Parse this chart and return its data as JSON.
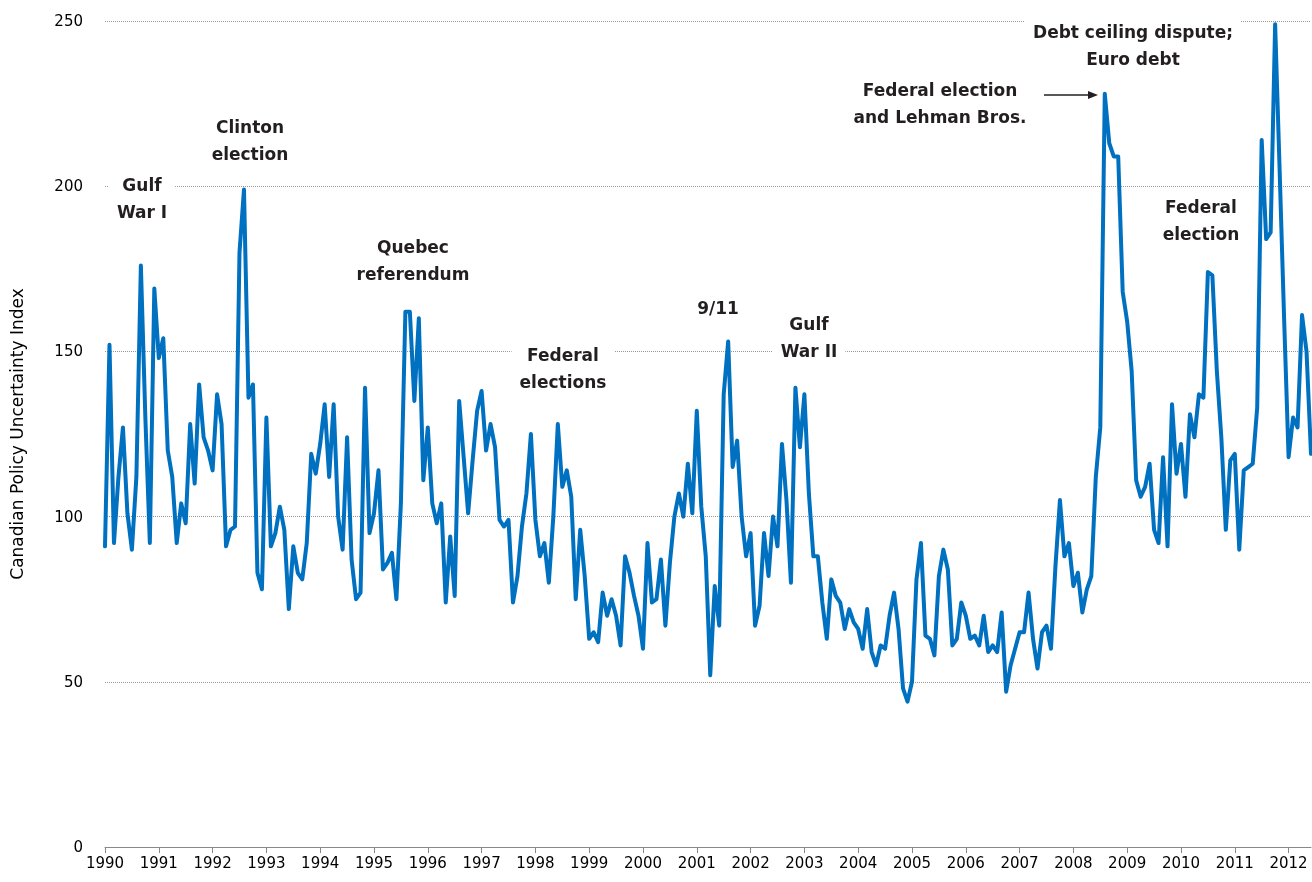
{
  "chart_data": {
    "type": "line",
    "ylabel": "Canadian Policy Uncertainty Index",
    "x": [
      "1990-01",
      "1990-02",
      "1990-03",
      "1990-04",
      "1990-05",
      "1990-06",
      "1990-07",
      "1990-08",
      "1990-09",
      "1990-10",
      "1990-11",
      "1990-12",
      "1991-01",
      "1991-02",
      "1991-03",
      "1991-04",
      "1991-05",
      "1991-06",
      "1991-07",
      "1991-08",
      "1991-09",
      "1991-10",
      "1991-11",
      "1991-12",
      "1992-01",
      "1992-02",
      "1992-03",
      "1992-04",
      "1992-05",
      "1992-06",
      "1992-07",
      "1992-08",
      "1992-09",
      "1992-10",
      "1992-11",
      "1992-12",
      "1993-01",
      "1993-02",
      "1993-03",
      "1993-04",
      "1993-05",
      "1993-06",
      "1993-07",
      "1993-08",
      "1993-09",
      "1993-10",
      "1993-11",
      "1993-12",
      "1994-01",
      "1994-02",
      "1994-03",
      "1994-04",
      "1994-05",
      "1994-06",
      "1994-07",
      "1994-08",
      "1994-09",
      "1994-10",
      "1994-11",
      "1994-12",
      "1995-01",
      "1995-02",
      "1995-03",
      "1995-04",
      "1995-05",
      "1995-06",
      "1995-07",
      "1995-08",
      "1995-09",
      "1995-10",
      "1995-11",
      "1995-12",
      "1996-01",
      "1996-02",
      "1996-03",
      "1996-04",
      "1996-05",
      "1996-06",
      "1996-07",
      "1996-08",
      "1996-09",
      "1996-10",
      "1996-11",
      "1996-12",
      "1997-01",
      "1997-02",
      "1997-03",
      "1997-04",
      "1997-05",
      "1997-06",
      "1997-07",
      "1997-08",
      "1997-09",
      "1997-10",
      "1997-11",
      "1997-12",
      "1998-01",
      "1998-02",
      "1998-03",
      "1998-04",
      "1998-05",
      "1998-06",
      "1998-07",
      "1998-08",
      "1998-09",
      "1998-10",
      "1998-11",
      "1998-12",
      "1999-01",
      "1999-02",
      "1999-03",
      "1999-04",
      "1999-05",
      "1999-06",
      "1999-07",
      "1999-08",
      "1999-09",
      "1999-10",
      "1999-11",
      "1999-12",
      "2000-01",
      "2000-02",
      "2000-03",
      "2000-04",
      "2000-05",
      "2000-06",
      "2000-07",
      "2000-08",
      "2000-09",
      "2000-10",
      "2000-11",
      "2000-12",
      "2001-01",
      "2001-02",
      "2001-03",
      "2001-04",
      "2001-05",
      "2001-06",
      "2001-07",
      "2001-08",
      "2001-09",
      "2001-10",
      "2001-11",
      "2001-12",
      "2002-01",
      "2002-02",
      "2002-03",
      "2002-04",
      "2002-05",
      "2002-06",
      "2002-07",
      "2002-08",
      "2002-09",
      "2002-10",
      "2002-11",
      "2002-12",
      "2003-01",
      "2003-02",
      "2003-03",
      "2003-04",
      "2003-05",
      "2003-06",
      "2003-07",
      "2003-08",
      "2003-09",
      "2003-10",
      "2003-11",
      "2003-12",
      "2004-01",
      "2004-02",
      "2004-03",
      "2004-04",
      "2004-05",
      "2004-06",
      "2004-07",
      "2004-08",
      "2004-09",
      "2004-10",
      "2004-11",
      "2004-12",
      "2005-01",
      "2005-02",
      "2005-03",
      "2005-04",
      "2005-05",
      "2005-06",
      "2005-07",
      "2005-08",
      "2005-09",
      "2005-10",
      "2005-11",
      "2005-12",
      "2006-01",
      "2006-02",
      "2006-03",
      "2006-04",
      "2006-05",
      "2006-06",
      "2006-07",
      "2006-08",
      "2006-09",
      "2006-10",
      "2006-11",
      "2006-12",
      "2007-01",
      "2007-02",
      "2007-03",
      "2007-04",
      "2007-05",
      "2007-06",
      "2007-07",
      "2007-08",
      "2007-09",
      "2007-10",
      "2007-11",
      "2007-12",
      "2008-01",
      "2008-02",
      "2008-03",
      "2008-04",
      "2008-05",
      "2008-06",
      "2008-07",
      "2008-08",
      "2008-09",
      "2008-10",
      "2008-11",
      "2008-12",
      "2009-01",
      "2009-02",
      "2009-03",
      "2009-04",
      "2009-05",
      "2009-06",
      "2009-07",
      "2009-08",
      "2009-09",
      "2009-10",
      "2009-11",
      "2009-12",
      "2010-01",
      "2010-02",
      "2010-03",
      "2010-04",
      "2010-05",
      "2010-06",
      "2010-07",
      "2010-08",
      "2010-09",
      "2010-10",
      "2010-11",
      "2010-12",
      "2011-01",
      "2011-02",
      "2011-03",
      "2011-04",
      "2011-05",
      "2011-06",
      "2011-07",
      "2011-08",
      "2011-09",
      "2011-10",
      "2011-11",
      "2011-12",
      "2012-01",
      "2012-02",
      "2012-03",
      "2012-04",
      "2012-05",
      "2012-06"
    ],
    "series": [
      {
        "color": "#0070c0",
        "values": [
          91,
          152,
          92,
          112,
          127,
          101,
          90,
          112,
          176,
          130,
          92,
          169,
          148,
          154,
          120,
          112,
          92,
          104,
          98,
          128,
          110,
          140,
          124,
          120,
          114,
          137,
          128,
          91,
          96,
          97,
          180,
          199,
          136,
          140,
          83,
          78,
          130,
          91,
          95,
          103,
          96,
          72,
          91,
          83,
          81,
          92,
          119,
          113,
          122,
          134,
          112,
          134,
          100,
          90,
          124,
          87,
          75,
          77,
          139,
          95,
          101,
          114,
          84,
          86,
          89,
          75,
          104,
          162,
          162,
          135,
          160,
          111,
          127,
          104,
          98,
          104,
          74,
          94,
          76,
          135,
          118,
          101,
          117,
          132,
          138,
          120,
          128,
          121,
          99,
          97,
          99,
          74,
          82,
          97,
          107,
          125,
          99,
          88,
          92,
          80,
          100,
          128,
          109,
          114,
          106,
          75,
          96,
          82,
          63,
          65,
          62,
          77,
          70,
          75,
          70,
          61,
          88,
          83,
          76,
          70,
          60,
          92,
          74,
          75,
          87,
          67,
          86,
          100,
          107,
          100,
          116,
          101,
          132,
          103,
          88,
          52,
          79,
          67,
          137,
          153,
          115,
          123,
          100,
          88,
          95,
          67,
          73,
          95,
          82,
          100,
          91,
          122,
          105,
          80,
          139,
          121,
          137,
          107,
          88,
          88,
          74,
          63,
          81,
          76,
          74,
          66,
          72,
          68,
          66,
          60,
          72,
          59,
          55,
          61,
          60,
          70,
          77,
          66,
          48,
          44,
          50,
          81,
          92,
          64,
          63,
          58,
          82,
          90,
          84,
          61,
          63,
          74,
          70,
          63,
          64,
          61,
          70,
          59,
          61,
          59,
          71,
          47,
          55,
          60,
          65,
          65,
          77,
          63,
          54,
          65,
          67,
          60,
          85,
          105,
          88,
          92,
          79,
          83,
          71,
          78,
          82,
          112,
          127,
          228,
          213,
          209,
          209,
          168,
          159,
          144,
          111,
          106,
          109,
          116,
          96,
          92,
          118,
          91,
          134,
          113,
          122,
          106,
          131,
          124,
          137,
          136,
          174,
          173,
          144,
          124,
          96,
          117,
          119,
          90,
          114,
          115,
          116,
          133,
          214,
          184,
          186,
          249,
          205,
          160,
          118,
          130,
          127,
          161,
          150,
          119
        ]
      }
    ],
    "xlim": [
      "1990-01",
      "2012-06"
    ],
    "xticks": [
      "1990",
      "1991",
      "1992",
      "1993",
      "1994",
      "1995",
      "1996",
      "1997",
      "1998",
      "1999",
      "2000",
      "2001",
      "2002",
      "2003",
      "2004",
      "2005",
      "2006",
      "2007",
      "2008",
      "2009",
      "2010",
      "2011",
      "2012"
    ],
    "ylim": [
      0,
      250
    ],
    "yticks": [
      0,
      50,
      100,
      150,
      200,
      250
    ],
    "grid": "y",
    "marker": "none",
    "line_style": "solid",
    "annotations": [
      "Gulf\nWar I",
      "Clinton\nelection",
      "Quebec\nreferendum",
      "Federal\nelections",
      "9/11",
      "Gulf\nWar II",
      "Federal election\nand Lehman Bros.",
      "Debt ceiling dispute;\nEuro debt",
      "Federal\nelection"
    ]
  }
}
